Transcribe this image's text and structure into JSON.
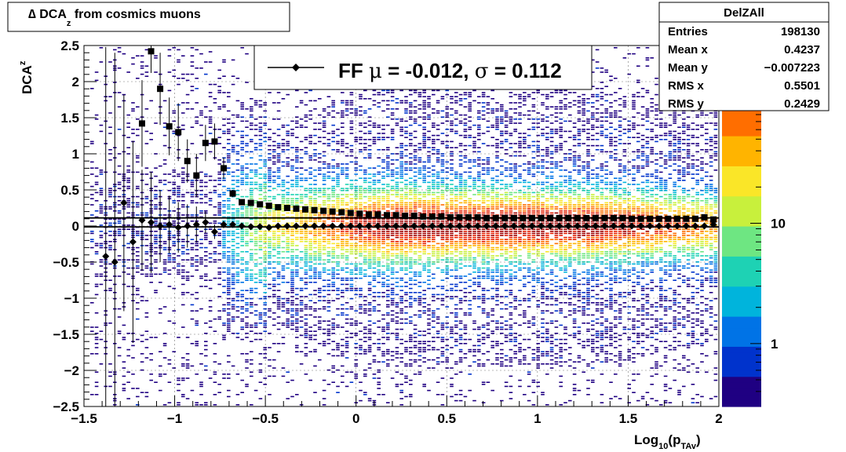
{
  "title": "∆ DCA",
  "title_sub": "z",
  "title_rest": " from cosmics muons",
  "legend": {
    "label_prefix": "FF ",
    "mu_symbol": "μ",
    "mu_text": " = -0.012, ",
    "sigma_symbol": "σ",
    "sigma_text": " =   0.112"
  },
  "stats": {
    "name": "DelZAll",
    "rows": [
      {
        "label": "Entries",
        "value": "198130"
      },
      {
        "label": "Mean x",
        "value": "0.4237"
      },
      {
        "label": "Mean y",
        "value": "−0.007223"
      },
      {
        "label": "RMS x",
        "value": "0.5501"
      },
      {
        "label": "RMS y",
        "value": "0.2429"
      }
    ]
  },
  "colors": {
    "marker": "#000000",
    "frame": "#000000",
    "palette": [
      "#1f0082",
      "#0033cc",
      "#0073e6",
      "#00b4dc",
      "#1ed2b4",
      "#6ee682",
      "#c8f03c",
      "#fae628",
      "#ffb400",
      "#ff6e00",
      "#e61e00",
      "#a00000"
    ]
  },
  "chart_data": {
    "type": "heatmap",
    "xlabel_main": "Log",
    "xlabel_sub": "10",
    "xlabel_paren": "(p",
    "xlabel_sub2": "TAv",
    "xlabel_close": ")",
    "ylabel_main": "DCA",
    "ylabel_sub": "z",
    "xlim": [
      -1.5,
      2
    ],
    "ylim": [
      -2.5,
      2.5
    ],
    "x_ticks": [
      -1.5,
      -1,
      -0.5,
      0,
      0.5,
      1,
      1.5,
      2
    ],
    "x_tick_labels": [
      "−1.5",
      "−1",
      "−0.5",
      "0",
      "0.5",
      "1",
      "1.5",
      "2"
    ],
    "y_ticks": [
      -2.5,
      -2,
      -1.5,
      -1,
      -0.5,
      0,
      0.5,
      1,
      1.5,
      2,
      2.5
    ],
    "y_tick_labels": [
      "−2.5",
      "−2",
      "−1.5",
      "−1",
      "−0.5",
      "0",
      "0.5",
      "1",
      "1.5",
      "2",
      "2.5"
    ],
    "z_scale": "log",
    "z_ticks": [
      1,
      10
    ],
    "z_tick_labels": [
      "1",
      "10"
    ],
    "z_range": [
      0.3,
      300
    ],
    "grid": true,
    "series": [
      {
        "marker": "diamond",
        "x": [
          -1.38,
          -1.33,
          -1.28,
          -1.23,
          -1.18,
          -1.13,
          -1.08,
          -1.03,
          -0.98,
          -0.93,
          -0.88,
          -0.83,
          -0.78,
          -0.73,
          -0.68,
          -0.63,
          -0.58,
          -0.53,
          -0.48,
          -0.43,
          -0.38,
          -0.33,
          -0.28,
          -0.23,
          -0.18,
          -0.13,
          -0.08,
          -0.03,
          0.02,
          0.07,
          0.12,
          0.17,
          0.22,
          0.27,
          0.32,
          0.37,
          0.42,
          0.47,
          0.52,
          0.57,
          0.62,
          0.67,
          0.72,
          0.77,
          0.82,
          0.87,
          0.92,
          0.97,
          1.02,
          1.07,
          1.12,
          1.17,
          1.22,
          1.27,
          1.32,
          1.37,
          1.42,
          1.47,
          1.52,
          1.57,
          1.62,
          1.67,
          1.72,
          1.77,
          1.82,
          1.87,
          1.92,
          1.97
        ],
        "y": [
          -0.42,
          -0.5,
          0.32,
          -0.22,
          0.08,
          0.05,
          0.0,
          0.02,
          -0.02,
          0.0,
          0.02,
          0.05,
          -0.08,
          0.02,
          0.02,
          0.0,
          -0.01,
          -0.01,
          -0.02,
          0.0,
          0.0,
          0.0,
          0.0,
          0.0,
          0.0,
          0.0,
          0.0,
          0.0,
          0.0,
          0.0,
          0.0,
          0.0,
          0.0,
          0.0,
          0.0,
          0.0,
          0.0,
          0.0,
          0.0,
          0.0,
          0.0,
          0.0,
          0.0,
          0.0,
          0.0,
          0.0,
          0.0,
          0.0,
          0.0,
          0.0,
          0.0,
          0.0,
          0.0,
          0.0,
          0.0,
          0.0,
          0.0,
          0.0,
          0.0,
          0.0,
          0.0,
          0.0,
          0.0,
          0.0,
          0.0,
          0.0,
          0.0,
          0.02
        ],
        "y_err": [
          2.9,
          2.9,
          1.5,
          1.4,
          0.7,
          0.7,
          0.5,
          0.4,
          0.35,
          0.3,
          0.25,
          0.15,
          0.1,
          0.05,
          0.03,
          0.0,
          0.0,
          0.0,
          0.0,
          0.0,
          0.0,
          0.0,
          0.0,
          0.0,
          0.0,
          0.0,
          0.0,
          0.0,
          0.0,
          0.0,
          0.0,
          0.0,
          0.0,
          0.0,
          0.0,
          0.0,
          0.0,
          0.0,
          0.0,
          0.0,
          0.0,
          0.0,
          0.0,
          0.0,
          0.0,
          0.0,
          0.0,
          0.0,
          0.0,
          0.0,
          0.0,
          0.0,
          0.0,
          0.0,
          0.0,
          0.0,
          0.0,
          0.0,
          0.0,
          0.0,
          0.0,
          0.0,
          0.0,
          0.0,
          0.0,
          0.0,
          0.0,
          0.0
        ]
      },
      {
        "marker": "square",
        "x": [
          -1.18,
          -1.13,
          -1.08,
          -1.03,
          -0.98,
          -0.93,
          -0.88,
          -0.83,
          -0.78,
          -0.73,
          -0.68,
          -0.63,
          -0.58,
          -0.53,
          -0.48,
          -0.43,
          -0.38,
          -0.33,
          -0.28,
          -0.23,
          -0.18,
          -0.13,
          -0.08,
          -0.03,
          0.02,
          0.07,
          0.12,
          0.17,
          0.22,
          0.27,
          0.32,
          0.37,
          0.42,
          0.47,
          0.52,
          0.57,
          0.62,
          0.67,
          0.72,
          0.77,
          0.82,
          0.87,
          0.92,
          0.97,
          1.02,
          1.07,
          1.12,
          1.17,
          1.22,
          1.27,
          1.32,
          1.37,
          1.42,
          1.47,
          1.52,
          1.57,
          1.62,
          1.67,
          1.72,
          1.77,
          1.82,
          1.87,
          1.92,
          1.97
        ],
        "y": [
          1.42,
          2.42,
          1.9,
          1.38,
          1.3,
          0.9,
          0.7,
          1.15,
          1.17,
          0.8,
          0.45,
          0.33,
          0.32,
          0.3,
          0.28,
          0.26,
          0.25,
          0.24,
          0.23,
          0.22,
          0.21,
          0.2,
          0.19,
          0.18,
          0.17,
          0.16,
          0.16,
          0.15,
          0.15,
          0.14,
          0.14,
          0.13,
          0.13,
          0.13,
          0.12,
          0.12,
          0.12,
          0.12,
          0.11,
          0.11,
          0.11,
          0.11,
          0.11,
          0.11,
          0.11,
          0.11,
          0.11,
          0.11,
          0.11,
          0.11,
          0.11,
          0.11,
          0.11,
          0.11,
          0.1,
          0.1,
          0.1,
          0.1,
          0.1,
          0.1,
          0.1,
          0.1,
          0.12,
          0.09
        ],
        "y_err": [
          0.6,
          0.3,
          0.5,
          0.4,
          0.4,
          0.3,
          0.3,
          0.25,
          0.25,
          0.15,
          0.05,
          0.02,
          0.0,
          0.0,
          0.0,
          0.0,
          0.0,
          0.0,
          0.0,
          0.0,
          0.0,
          0.0,
          0.0,
          0.0,
          0.0,
          0.0,
          0.0,
          0.0,
          0.0,
          0.0,
          0.0,
          0.0,
          0.0,
          0.0,
          0.0,
          0.0,
          0.0,
          0.0,
          0.0,
          0.0,
          0.0,
          0.0,
          0.0,
          0.0,
          0.0,
          0.0,
          0.0,
          0.0,
          0.0,
          0.0,
          0.0,
          0.0,
          0.0,
          0.0,
          0.0,
          0.0,
          0.0,
          0.0,
          0.0,
          0.0,
          0.0,
          0.0,
          0.0,
          0.0
        ]
      }
    ],
    "lines": [
      {
        "y": -0.012
      },
      {
        "y": 0.112
      }
    ]
  }
}
